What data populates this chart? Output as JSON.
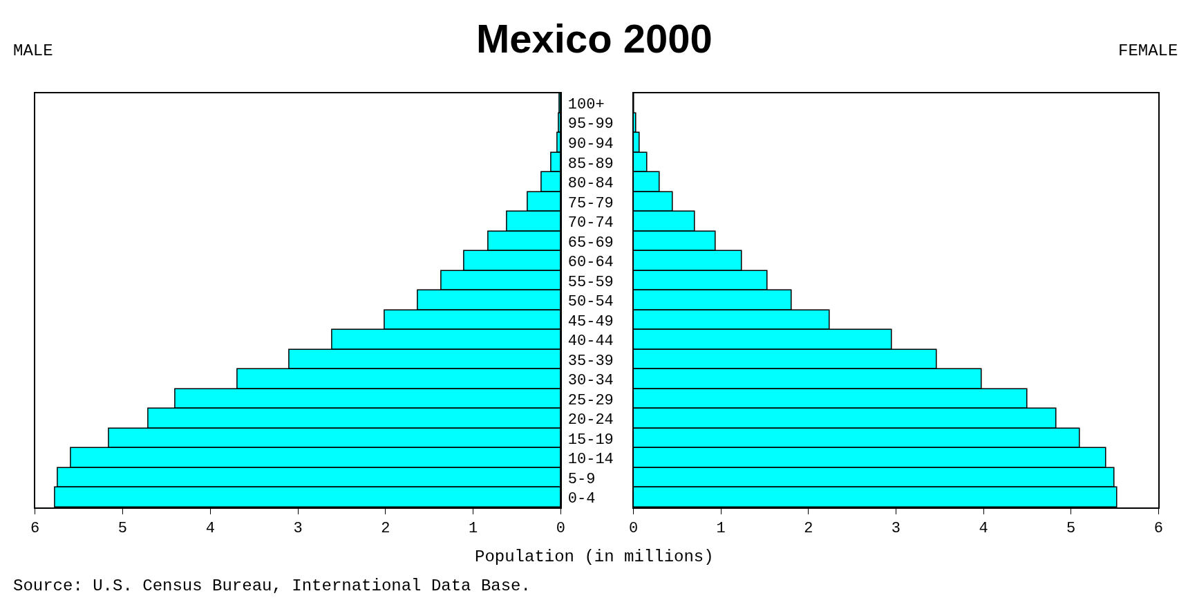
{
  "chart_data": [
    {
      "type": "bar",
      "orientation": "horizontal",
      "title": "Mexico 2000",
      "xlabel": "Population (in millions)",
      "annotations": [
        "MALE",
        "Source: U.S. Census Bureau, International Data Base."
      ],
      "categories": [
        "100+",
        "95-99",
        "90-94",
        "85-89",
        "80-84",
        "75-79",
        "70-74",
        "65-69",
        "60-64",
        "55-59",
        "50-54",
        "45-49",
        "40-44",
        "35-39",
        "30-34",
        "25-29",
        "20-24",
        "15-19",
        "10-14",
        "5-9",
        "0-4"
      ],
      "series": [
        {
          "color": "#00ffff",
          "values": [
            0.01,
            0.02,
            0.04,
            0.11,
            0.22,
            0.38,
            0.61,
            0.83,
            1.1,
            1.36,
            1.63,
            2.01,
            2.61,
            3.1,
            3.69,
            4.4,
            4.71,
            5.16,
            5.59,
            5.74,
            5.77
          ]
        }
      ],
      "xlim": [
        6,
        0
      ],
      "xticks": [
        6,
        5,
        4,
        3,
        2,
        1,
        0
      ],
      "grid": false
    },
    {
      "type": "bar",
      "orientation": "horizontal",
      "annotations": [
        "FEMALE"
      ],
      "tick_labels": "x",
      "series": [
        {
          "color": "#00ffff",
          "values": [
            0.01,
            0.03,
            0.07,
            0.16,
            0.3,
            0.45,
            0.7,
            0.94,
            1.24,
            1.53,
            1.81,
            2.24,
            2.95,
            3.47,
            3.98,
            4.5,
            4.83,
            5.1,
            5.4,
            5.5,
            5.53
          ]
        }
      ],
      "xlim": [
        0,
        6
      ],
      "xticks": [
        0,
        1,
        2,
        3,
        4,
        5,
        6
      ],
      "grid": false
    }
  ]
}
